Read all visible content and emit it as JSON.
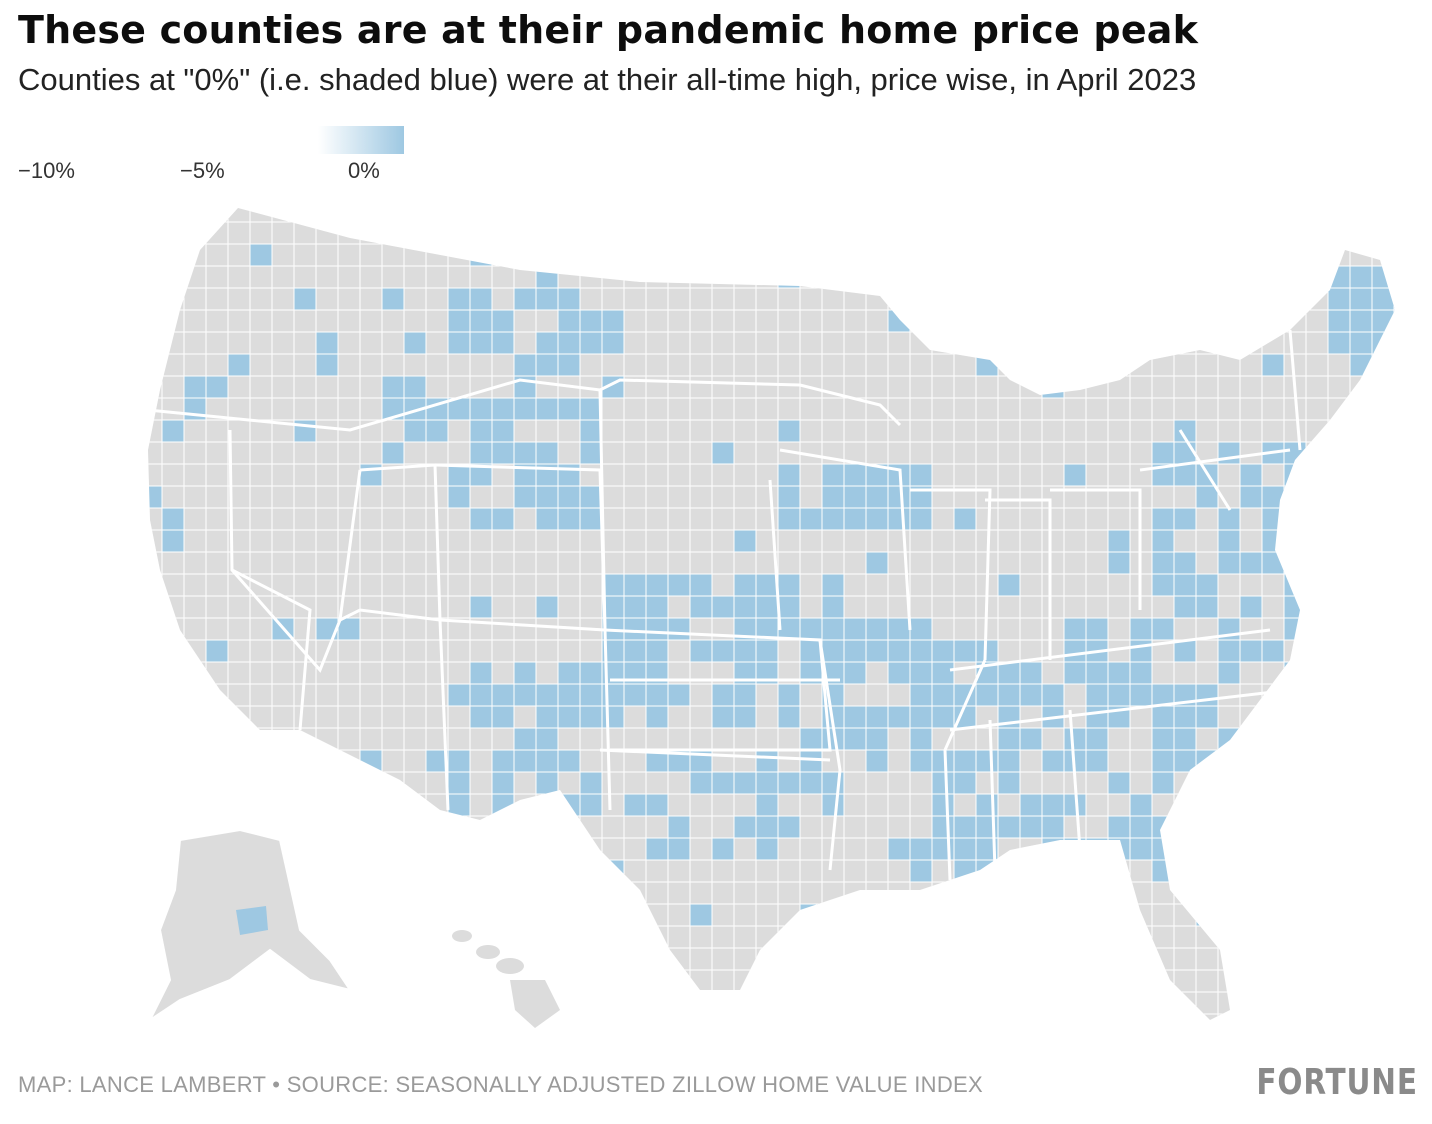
{
  "title": "These counties are at their pandemic home price peak",
  "subtitle": "Counties at \"0%\" (i.e. shaded blue) were at their all-time high, price wise, in April 2023",
  "legend": {
    "ticks": [
      "−10%",
      "−5%",
      "0%"
    ],
    "scale_range": [
      -10,
      0
    ],
    "color_low": "#ffffff",
    "color_high": "#9ec8e2"
  },
  "map": {
    "base_color": "#dcdcdc",
    "highlight_color": "#9ec8e2",
    "border_color": "#ffffff"
  },
  "footer": {
    "source": "MAP: LANCE LAMBERT • SOURCE: SEASONALLY ADJUSTED ZILLOW HOME VALUE INDEX",
    "logo": "FORTUNE"
  }
}
